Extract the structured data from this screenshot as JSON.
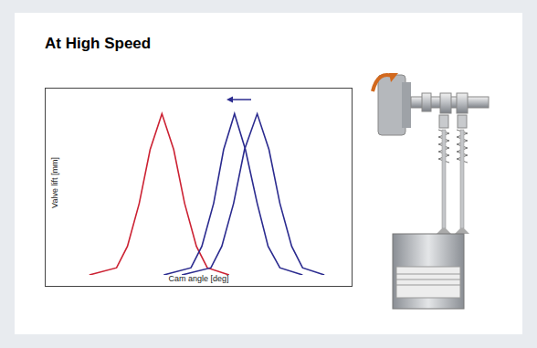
{
  "title": "At High Speed",
  "chart_data": {
    "type": "line",
    "x_label": "Cam angle [deg]",
    "y_label": "Valve lift [mm]",
    "xlim": [
      0,
      310
    ],
    "ylim": [
      0,
      100
    ],
    "tick_labels": false,
    "grid": false,
    "series": [
      {
        "color": "#cc2233",
        "x": [
          28,
          58,
          70,
          83,
          95,
          108,
          121,
          133,
          146,
          158,
          182
        ],
        "values": [
          0,
          4,
          16,
          40,
          70,
          90,
          70,
          40,
          16,
          4,
          0
        ]
      },
      {
        "color": "#2b2b8f",
        "x": [
          110,
          140,
          152,
          165,
          176,
          188,
          200,
          213,
          225,
          238,
          263
        ],
        "values": [
          0,
          4,
          16,
          40,
          70,
          90,
          70,
          40,
          16,
          4,
          0
        ]
      },
      {
        "color": "#2b2b8f",
        "x": [
          130,
          162,
          174,
          187,
          199,
          213,
          226,
          238,
          251,
          263,
          287
        ],
        "values": [
          0,
          4,
          16,
          40,
          70,
          90,
          70,
          40,
          16,
          4,
          0
        ]
      }
    ]
  }
}
